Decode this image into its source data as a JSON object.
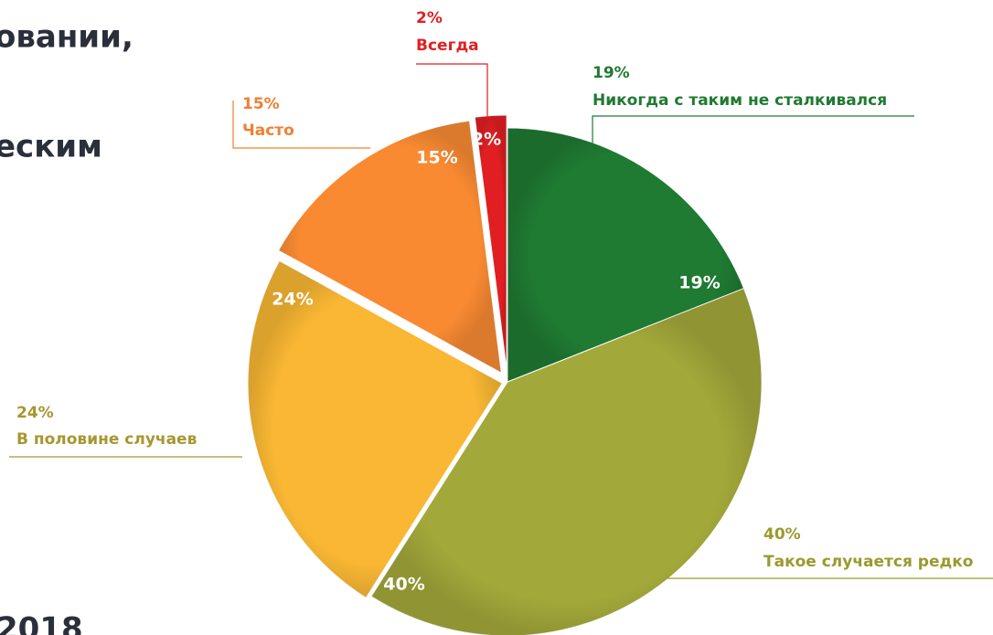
{
  "chart_data": {
    "type": "pie",
    "annotations": [
      "овании,",
      "еским",
      "2018"
    ],
    "categories": [
      "Никогда с таким не сталкивался",
      "Такое случается редко",
      "В половине случаев",
      "Часто",
      "Всегда"
    ],
    "values": [
      19,
      40,
      24,
      15,
      2
    ],
    "value_labels": [
      "19%",
      "40%",
      "24%",
      "15%",
      "2%"
    ],
    "colors": [
      "#1f7a32",
      "#a3a83a",
      "#f9b733",
      "#f98a32",
      "#e11f22"
    ]
  }
}
